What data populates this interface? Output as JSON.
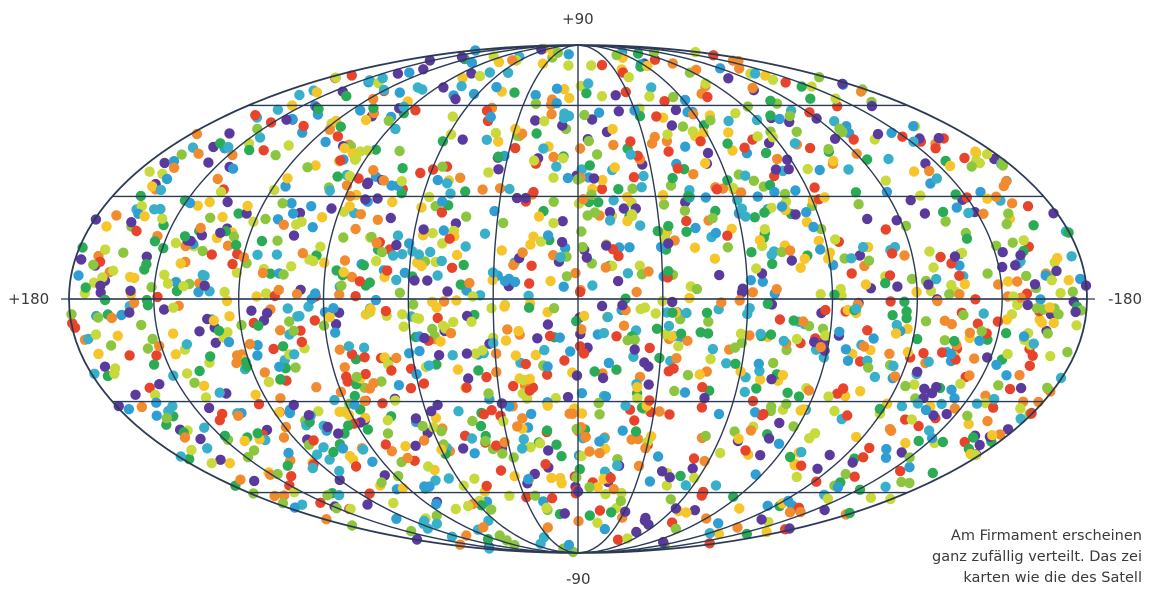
{
  "chart_data": {
    "type": "scatter",
    "projection": "Mollweide",
    "axis_labels": {
      "north": "+90",
      "south": "-90",
      "left": "+180",
      "right": "-180"
    },
    "xlim": [
      180,
      -180
    ],
    "ylim": [
      -90,
      90
    ],
    "grid": true,
    "graticule": {
      "meridians_deg": [
        -150,
        -120,
        -90,
        -60,
        -30,
        0,
        30,
        60,
        90,
        120,
        150
      ],
      "parallels_deg": [
        -60,
        -30,
        0,
        30,
        60
      ]
    },
    "point_count_approx": 2000,
    "distribution": "random, isotropic",
    "palette": [
      "#5b3a9e",
      "#2f9fd3",
      "#38b0c9",
      "#2aab55",
      "#8cc63f",
      "#c7d93b",
      "#f5c52a",
      "#f28a2e",
      "#e8432b"
    ]
  },
  "caption": {
    "lines": [
      "Am Firmament erscheinen",
      "ganz zufällig verteilt. Das zei",
      "karten wie die des Satell"
    ]
  },
  "colors": {
    "grid": "#2b3a55",
    "text": "#3a3a3a"
  }
}
